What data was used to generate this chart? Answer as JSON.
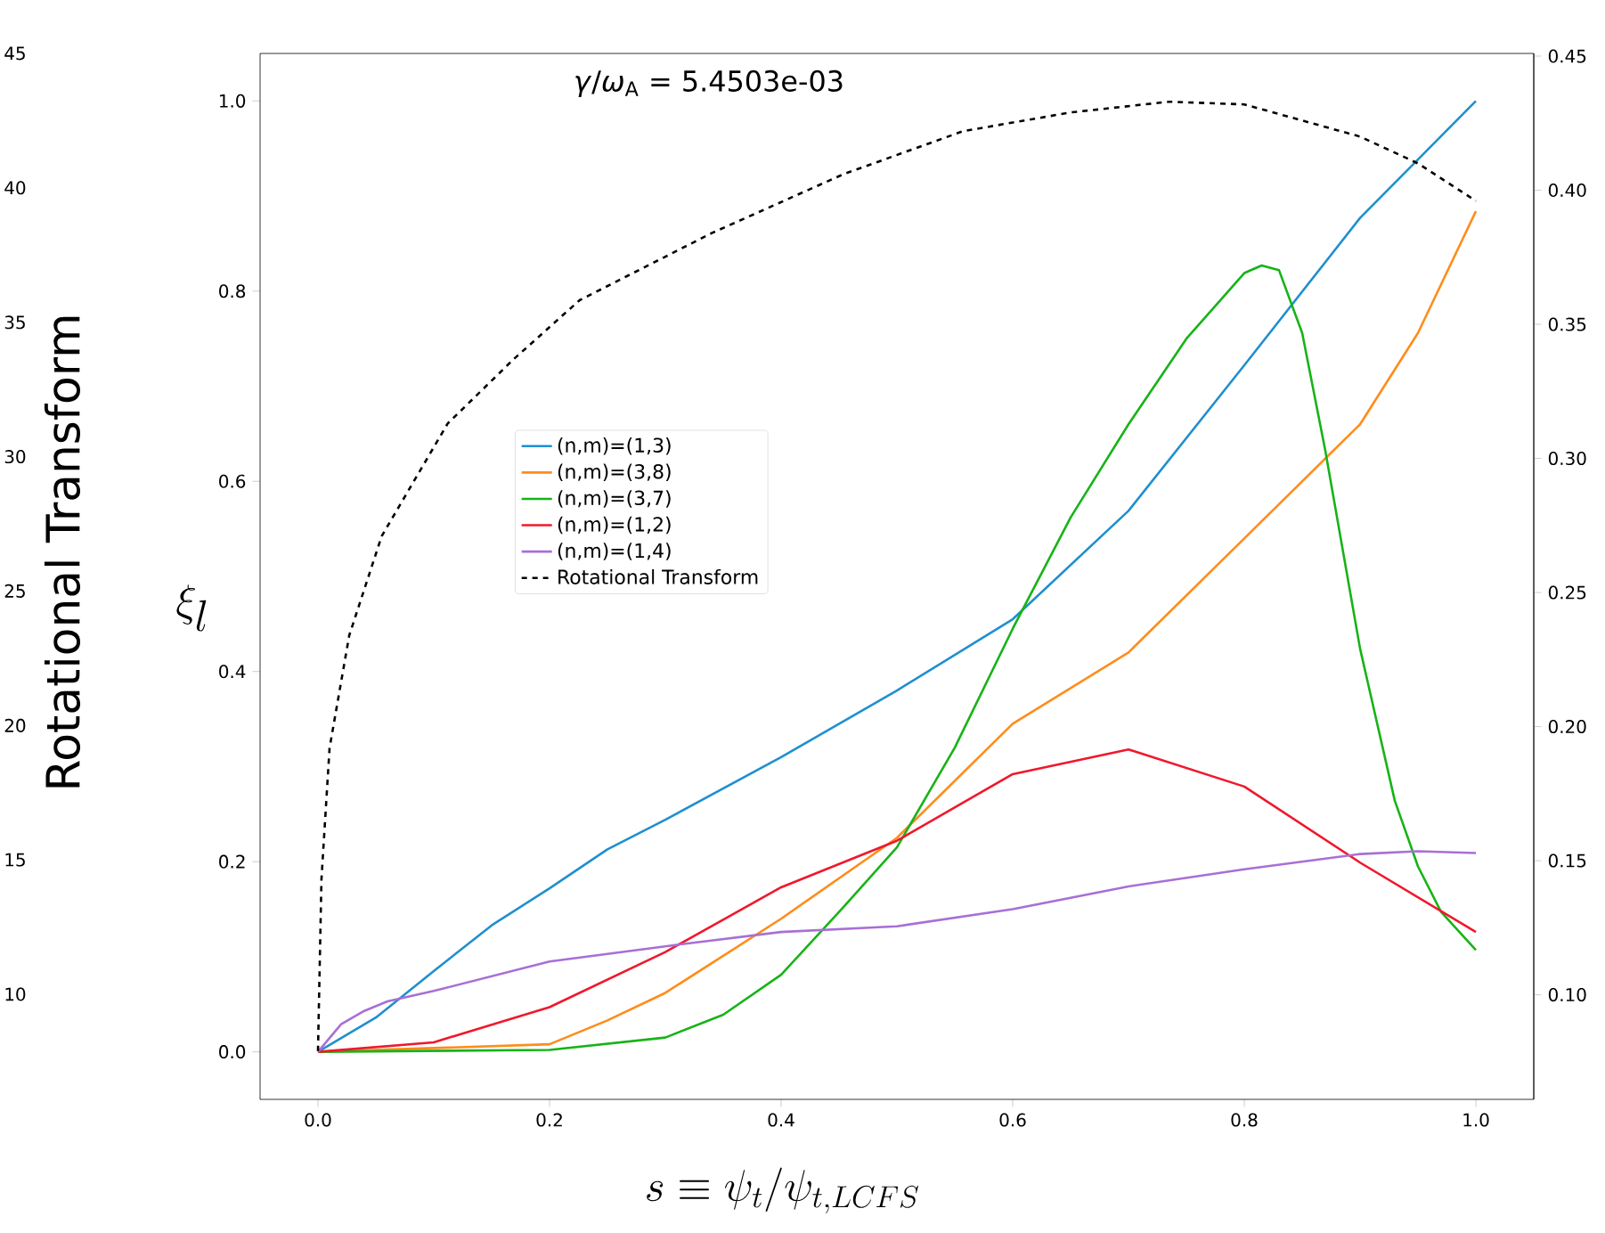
{
  "chart_data": {
    "type": "line",
    "annotations": [
      "*γ*/*ω*$_{A}$ = 5.4503e-03",
      "Rotational Transform",
      "45",
      "40",
      "35",
      "30",
      "25",
      "20",
      "15",
      "10"
    ],
    "xlabel": "s \\equiv \\psi_t/\\psi_{t,LCFS}",
    "ylabel": "\\xi_l",
    "xlim": [
      -0.05,
      1.05
    ],
    "ylim": [
      -0.05,
      1.05
    ],
    "y2lim": [
      0.061,
      0.451
    ],
    "xticks": [
      {
        "value": 0,
        "label": "0.0"
      },
      0.2,
      0.4,
      0.6,
      0.8,
      {
        "value": 1,
        "label": "1.0"
      }
    ],
    "yticks": [
      {
        "value": 0,
        "label": "0.0"
      },
      0.2,
      0.4,
      0.6,
      0.8,
      {
        "value": 1,
        "label": "1.0"
      }
    ],
    "y2ticks": [
      {
        "value": 0.1,
        "label": "0.10"
      },
      0.15,
      {
        "value": 0.2,
        "label": "0.20"
      },
      0.25,
      {
        "value": 0.3,
        "label": "0.30"
      },
      0.35,
      {
        "value": 0.4,
        "label": "0.40"
      },
      0.45
    ],
    "legend": "top left",
    "series": [
      {
        "name": "(n,m)=(1,3)",
        "color": "#1f8fcf",
        "x": [
          0,
          0.05,
          0.1,
          0.15,
          0.2,
          0.25,
          0.3,
          0.4,
          0.5,
          0.6,
          0.7,
          0.8,
          0.9,
          1.0
        ],
        "values": [
          0,
          0.036,
          0.085,
          0.133,
          0.172,
          0.213,
          0.244,
          0.31,
          0.38,
          0.455,
          0.569,
          0.722,
          0.877,
          1.0
        ]
      },
      {
        "name": "(n,m)=(3,8)",
        "color": "#ff8c1a",
        "x": [
          0,
          0.1,
          0.2,
          0.25,
          0.3,
          0.4,
          0.5,
          0.6,
          0.7,
          0.8,
          0.9,
          0.95,
          1.0
        ],
        "values": [
          0,
          null,
          0.008,
          0.033,
          0.062,
          0.14,
          0.225,
          0.345,
          0.42,
          0.54,
          0.66,
          0.756,
          0.884
        ]
      },
      {
        "name": "(n,m)=(3,7)",
        "color": "#17b317",
        "x": [
          0,
          0.2,
          0.3,
          0.35,
          0.4,
          0.45,
          0.5,
          0.55,
          0.6,
          0.65,
          0.7,
          0.75,
          0.8,
          0.815,
          0.83,
          0.85,
          0.87,
          0.9,
          0.93,
          0.95,
          0.97,
          1.0
        ],
        "values": [
          0,
          0.002,
          0.015,
          0.039,
          0.081,
          0.147,
          0.215,
          0.32,
          0.445,
          0.562,
          0.66,
          0.75,
          0.819,
          0.827,
          0.822,
          0.756,
          0.632,
          0.424,
          0.264,
          0.195,
          0.147,
          0.107
        ]
      },
      {
        "name": "(n,m)=(1,2)",
        "color": "#f0182c",
        "x": [
          0,
          0.1,
          0.2,
          0.3,
          0.4,
          0.5,
          0.6,
          0.7,
          0.8,
          0.9,
          1.0
        ],
        "values": [
          0,
          0.01,
          0.047,
          0.105,
          0.173,
          0.222,
          0.292,
          0.318,
          0.279,
          0.199,
          0.126
        ]
      },
      {
        "name": "(n,m)=(1,4)",
        "color": "#a86fd6",
        "x": [
          0,
          0.02,
          0.04,
          0.06,
          0.1,
          0.2,
          0.3,
          0.4,
          0.5,
          0.6,
          0.7,
          0.8,
          0.9,
          0.95,
          1.0
        ],
        "values": [
          0,
          0.029,
          0.043,
          0.053,
          0.064,
          0.095,
          0.111,
          0.126,
          0.132,
          0.15,
          0.174,
          0.192,
          0.208,
          0.211,
          0.209
        ]
      },
      {
        "name": "Rotational Transform",
        "color": "#000000",
        "line_style": "dashed",
        "axis": "y2",
        "x": [
          0,
          0.003,
          0.01,
          0.027,
          0.055,
          0.112,
          0.169,
          0.226,
          0.34,
          0.454,
          0.557,
          0.65,
          0.735,
          0.8,
          0.9,
          0.95,
          1.0
        ],
        "values": [
          0.079,
          0.143,
          0.192,
          0.234,
          0.271,
          0.313,
          0.337,
          0.359,
          0.384,
          0.406,
          0.422,
          0.429,
          0.433,
          0.432,
          0.42,
          0.41,
          0.396
        ]
      }
    ]
  }
}
